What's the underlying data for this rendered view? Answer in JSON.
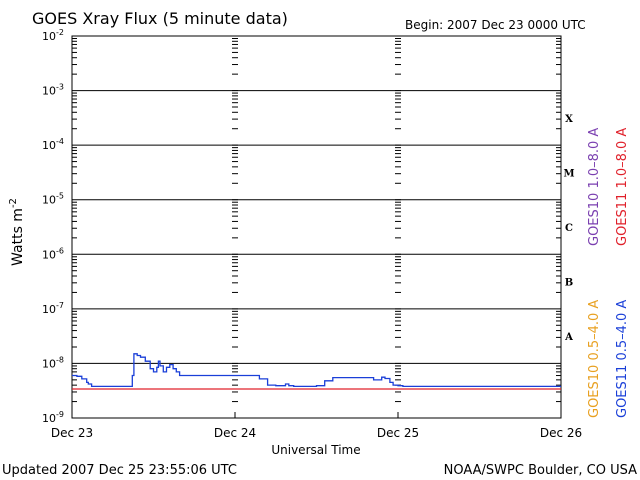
{
  "chart_data": {
    "type": "line",
    "title": "GOES Xray Flux (5 minute data)",
    "begin_label": "Begin:  2007 Dec 23 0000 UTC",
    "ylabel_main": "Watts m",
    "ylabel_exp": "-2",
    "xlabel": "Universal Time",
    "yscale": "log",
    "ylim_exp": [
      -9,
      -2
    ],
    "y_ticks": [
      {
        "base": "10",
        "exp": "-2",
        "value_exp": -2
      },
      {
        "base": "10",
        "exp": "-3",
        "value_exp": -3
      },
      {
        "base": "10",
        "exp": "-4",
        "value_exp": -4
      },
      {
        "base": "10",
        "exp": "-5",
        "value_exp": -5
      },
      {
        "base": "10",
        "exp": "-6",
        "value_exp": -6
      },
      {
        "base": "10",
        "exp": "-7",
        "value_exp": -7
      },
      {
        "base": "10",
        "exp": "-8",
        "value_exp": -8
      },
      {
        "base": "10",
        "exp": "-9",
        "value_exp": -9
      }
    ],
    "x_ticks": [
      {
        "label": "Dec 23",
        "day": 0
      },
      {
        "label": "Dec 24",
        "day": 1
      },
      {
        "label": "Dec 25",
        "day": 2
      },
      {
        "label": "Dec 26",
        "day": 3
      }
    ],
    "flare_classes": [
      {
        "label": "X",
        "value_exp": -3.5
      },
      {
        "label": "M",
        "value_exp": -4.5
      },
      {
        "label": "C",
        "value_exp": -5.5
      },
      {
        "label": "B",
        "value_exp": -6.5
      },
      {
        "label": "A",
        "value_exp": -7.5
      }
    ],
    "grid": "horizontal lines at each decade; dashed vertical day boundaries",
    "legend": [
      {
        "name": "GOES10 1.0–8.0 A",
        "color": "#7a3fb0"
      },
      {
        "name": "GOES11 1.0–8.0 A",
        "color": "#e0202a"
      },
      {
        "name": "GOES10 0.5–4.0 A",
        "color": "#e8a020"
      },
      {
        "name": "GOES11 0.5–4.0 A",
        "color": "#1a3fd8"
      }
    ],
    "series": [
      {
        "name": "GOES11 0.5–4.0 A",
        "color": "#1a3fd8",
        "x_days": [
          0.0,
          0.03,
          0.06,
          0.09,
          0.1,
          0.12,
          0.3,
          0.36,
          0.37,
          0.38,
          0.4,
          0.42,
          0.45,
          0.48,
          0.5,
          0.52,
          0.53,
          0.54,
          0.56,
          0.58,
          0.6,
          0.62,
          0.64,
          0.66,
          0.7,
          0.75,
          0.8,
          0.85,
          0.9,
          1.0,
          1.1,
          1.15,
          1.2,
          1.25,
          1.3,
          1.31,
          1.33,
          1.36,
          1.4,
          1.5,
          1.55,
          1.6,
          1.65,
          1.7,
          1.8,
          1.85,
          1.9,
          1.92,
          1.95,
          1.97,
          2.0,
          2.03,
          2.1,
          2.2,
          2.4,
          2.6,
          2.7,
          2.75,
          2.8,
          3.0
        ],
        "y": [
          6e-09,
          5.8e-09,
          5.2e-09,
          4.5e-09,
          4.2e-09,
          3.8e-09,
          3.8e-09,
          3.8e-09,
          6e-09,
          1.5e-08,
          1.4e-08,
          1.3e-08,
          1.1e-08,
          8e-09,
          7e-09,
          8.5e-09,
          1.1e-08,
          9e-09,
          7e-09,
          8.5e-09,
          9.5e-09,
          8e-09,
          7e-09,
          6e-09,
          6e-09,
          6e-09,
          6e-09,
          6e-09,
          6e-09,
          6e-09,
          6e-09,
          5.2e-09,
          4e-09,
          3.9e-09,
          3.9e-09,
          4.2e-09,
          3.9e-09,
          3.8e-09,
          3.8e-09,
          3.9e-09,
          4.8e-09,
          5.5e-09,
          5.5e-09,
          5.5e-09,
          5.5e-09,
          5e-09,
          5.6e-09,
          5.3e-09,
          4.5e-09,
          4e-09,
          3.9e-09,
          3.8e-09,
          3.8e-09,
          3.8e-09,
          3.8e-09,
          3.8e-09,
          3.8e-09,
          3.8e-09,
          3.8e-09,
          3.8e-09
        ]
      },
      {
        "name": "GOES11 1.0–8.0 A",
        "color": "#e0202a",
        "x_days": [
          0.0,
          3.0
        ],
        "y": [
          3.4e-09,
          3.4e-09
        ]
      }
    ]
  },
  "footer": {
    "updated": "Updated 2007 Dec 25 23:55:06 UTC",
    "source": "NOAA/SWPC Boulder, CO USA"
  }
}
